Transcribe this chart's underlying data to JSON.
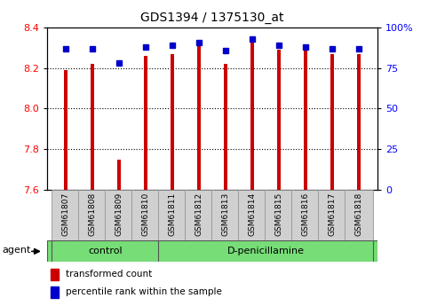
{
  "title": "GDS1394 / 1375130_at",
  "samples": [
    "GSM61807",
    "GSM61808",
    "GSM61809",
    "GSM61810",
    "GSM61811",
    "GSM61812",
    "GSM61813",
    "GSM61814",
    "GSM61815",
    "GSM61816",
    "GSM61817",
    "GSM61818"
  ],
  "red_values": [
    8.19,
    8.22,
    7.75,
    8.26,
    8.27,
    8.31,
    8.22,
    8.33,
    8.29,
    8.29,
    8.27,
    8.27
  ],
  "blue_values": [
    87,
    87,
    78,
    88,
    89,
    91,
    86,
    93,
    89,
    88,
    87,
    87
  ],
  "ylim_left": [
    7.6,
    8.4
  ],
  "ylim_right": [
    0,
    100
  ],
  "yticks_left": [
    7.6,
    7.8,
    8.0,
    8.2,
    8.4
  ],
  "yticks_right": [
    0,
    25,
    50,
    75,
    100
  ],
  "ytick_labels_right": [
    "0",
    "25",
    "50",
    "75",
    "100%"
  ],
  "grid_values": [
    7.8,
    8.0,
    8.2
  ],
  "bar_color_red": "#cc0000",
  "bar_color_blue": "#0000cc",
  "bar_width": 0.6,
  "base_value": 7.6,
  "legend_red": "transformed count",
  "legend_blue": "percentile rank within the sample",
  "plot_bg": "#ffffff",
  "tick_bg": "#d0d0d0",
  "group_color": "#77dd77",
  "group_labels": [
    "control",
    "D-penicillamine"
  ],
  "group_xranges": [
    [
      0,
      3
    ],
    [
      4,
      11
    ]
  ],
  "agent_label": "agent"
}
